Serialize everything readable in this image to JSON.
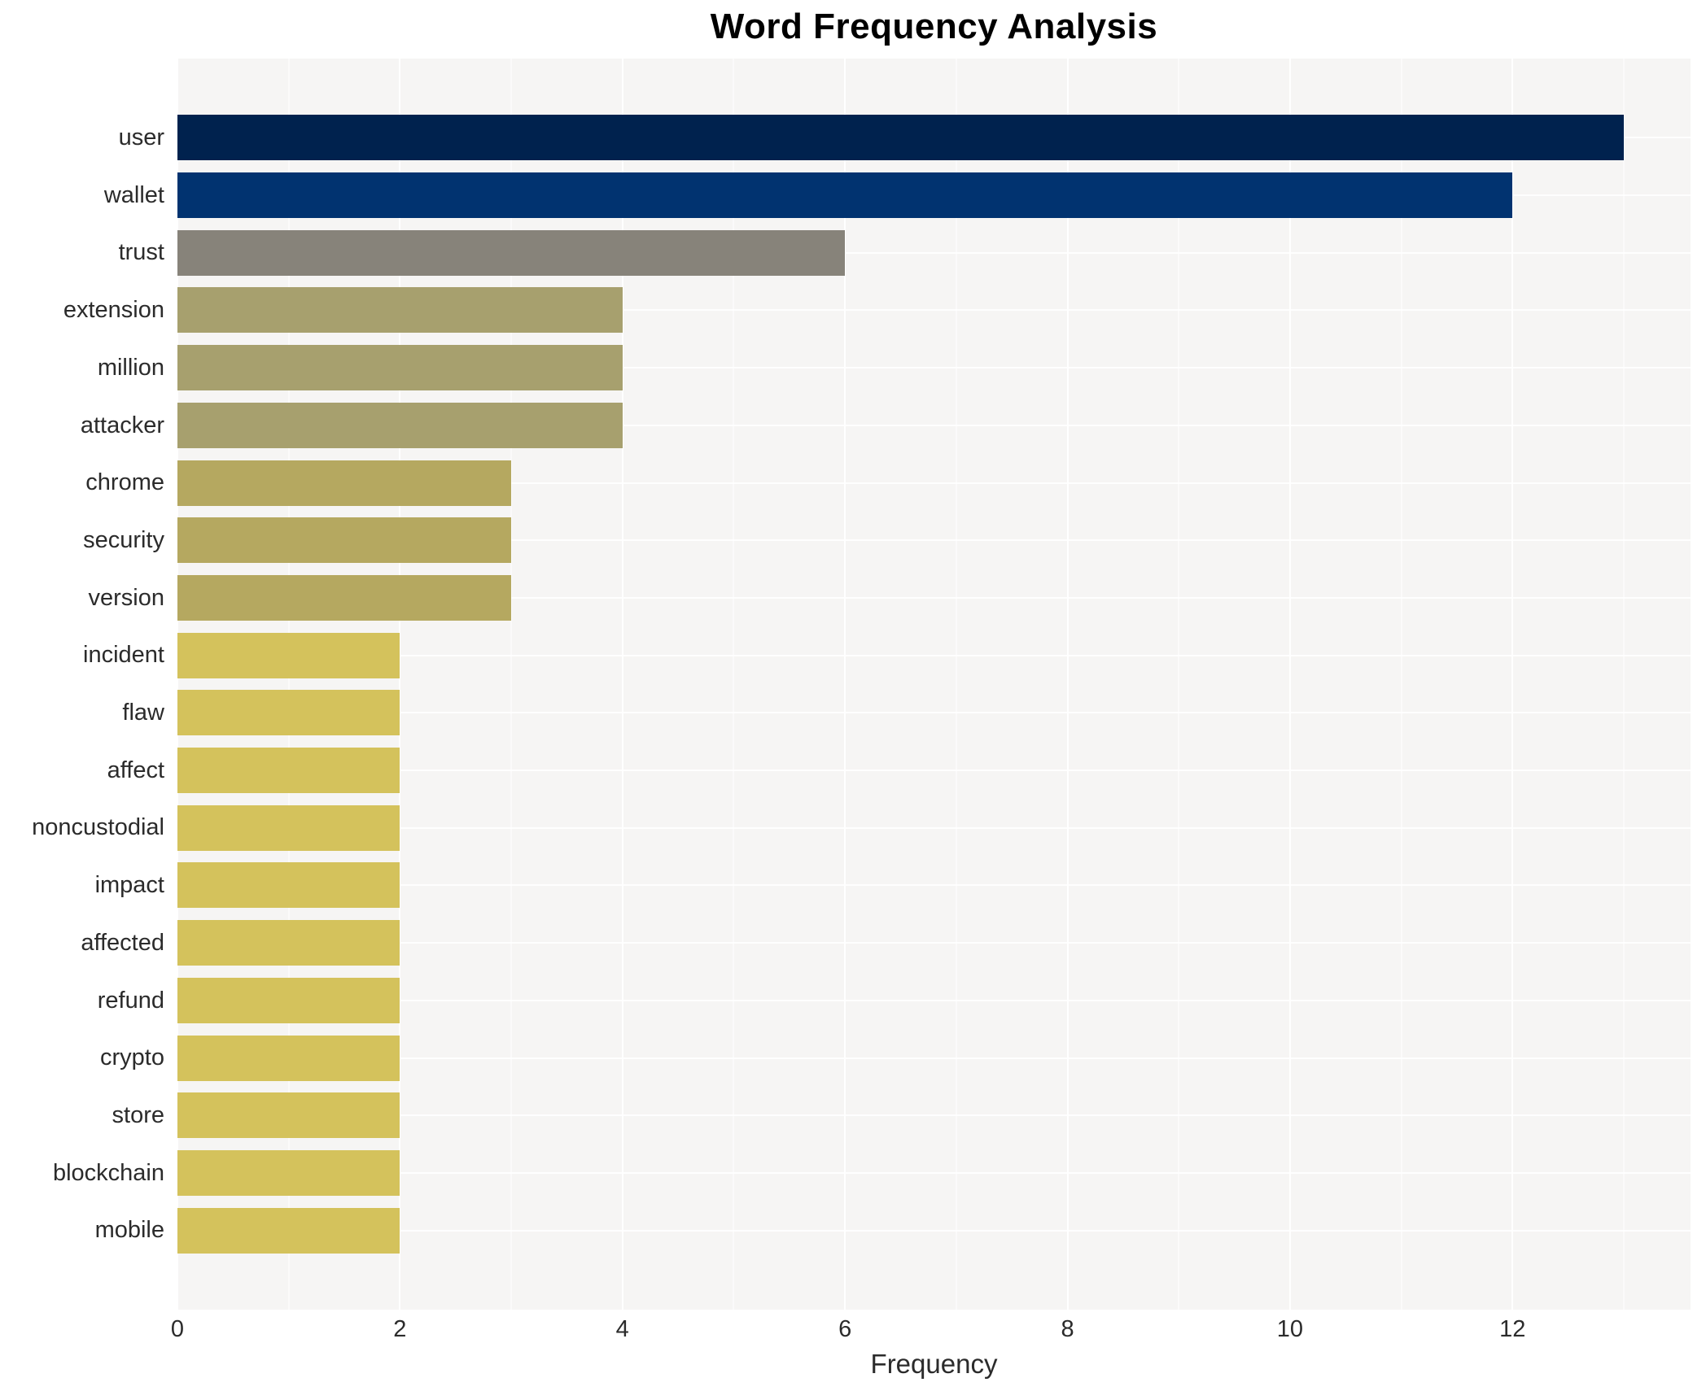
{
  "chart_data": {
    "type": "bar",
    "orientation": "horizontal",
    "title": "Word Frequency Analysis",
    "xlabel": "Frequency",
    "ylabel": "",
    "categories": [
      "user",
      "wallet",
      "trust",
      "extension",
      "million",
      "attacker",
      "chrome",
      "security",
      "version",
      "incident",
      "flaw",
      "affect",
      "noncustodial",
      "impact",
      "affected",
      "refund",
      "crypto",
      "store",
      "blockchain",
      "mobile"
    ],
    "values": [
      13,
      12,
      6,
      4,
      4,
      4,
      3,
      3,
      3,
      2,
      2,
      2,
      2,
      2,
      2,
      2,
      2,
      2,
      2,
      2
    ],
    "bar_colors": [
      "#00224e",
      "#013370",
      "#87837a",
      "#a7a06e",
      "#a7a06e",
      "#a7a06e",
      "#b5a860",
      "#b5a860",
      "#b5a860",
      "#d4c25c",
      "#d4c25c",
      "#d4c25c",
      "#d4c25c",
      "#d4c25c",
      "#d4c25c",
      "#d4c25c",
      "#d4c25c",
      "#d4c25c",
      "#d4c25c",
      "#d4c25c"
    ],
    "xlim": [
      0,
      13.6
    ],
    "xticks": [
      0,
      2,
      4,
      6,
      8,
      10,
      12
    ],
    "minor_xticks": [
      1,
      3,
      5,
      7,
      9,
      11,
      13
    ],
    "grid": true,
    "legend": "none",
    "plot_bg_color": "#f6f5f4",
    "grid_color": "#ffffff",
    "figure_bg_color": "#ffffff"
  }
}
